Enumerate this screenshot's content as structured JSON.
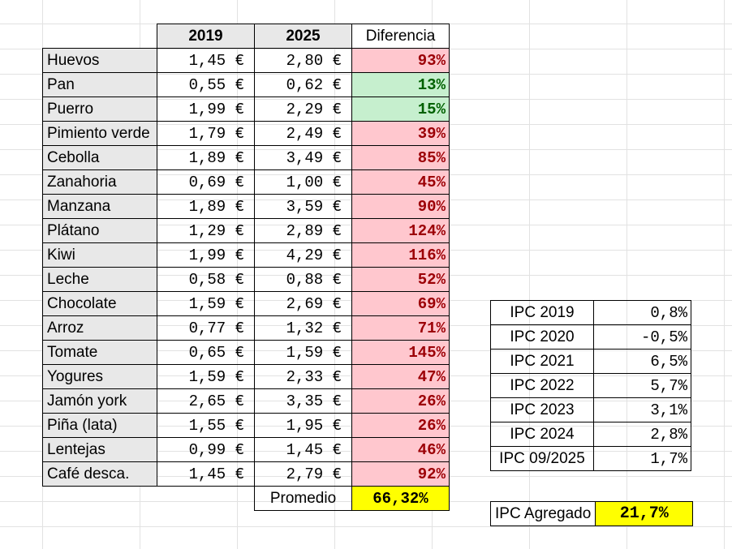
{
  "headers": {
    "y2019": "2019",
    "y2025": "2025",
    "diff": "Diferencia"
  },
  "rows": [
    {
      "name": "Huevos",
      "p2019": "1,45 €",
      "p2025": "2,80 €",
      "diff": "93%",
      "status": "bad"
    },
    {
      "name": "Pan",
      "p2019": "0,55 €",
      "p2025": "0,62 €",
      "diff": "13%",
      "status": "good"
    },
    {
      "name": "Puerro",
      "p2019": "1,99 €",
      "p2025": "2,29 €",
      "diff": "15%",
      "status": "good"
    },
    {
      "name": "Pimiento verde",
      "p2019": "1,79 €",
      "p2025": "2,49 €",
      "diff": "39%",
      "status": "bad"
    },
    {
      "name": "Cebolla",
      "p2019": "1,89 €",
      "p2025": "3,49 €",
      "diff": "85%",
      "status": "bad"
    },
    {
      "name": "Zanahoria",
      "p2019": "0,69 €",
      "p2025": "1,00 €",
      "diff": "45%",
      "status": "bad"
    },
    {
      "name": "Manzana",
      "p2019": "1,89 €",
      "p2025": "3,59 €",
      "diff": "90%",
      "status": "bad"
    },
    {
      "name": "Plátano",
      "p2019": "1,29 €",
      "p2025": "2,89 €",
      "diff": "124%",
      "status": "bad"
    },
    {
      "name": "Kiwi",
      "p2019": "1,99 €",
      "p2025": "4,29 €",
      "diff": "116%",
      "status": "bad"
    },
    {
      "name": "Leche",
      "p2019": "0,58 €",
      "p2025": "0,88 €",
      "diff": "52%",
      "status": "bad"
    },
    {
      "name": "Chocolate",
      "p2019": "1,59 €",
      "p2025": "2,69 €",
      "diff": "69%",
      "status": "bad"
    },
    {
      "name": "Arroz",
      "p2019": "0,77 €",
      "p2025": "1,32 €",
      "diff": "71%",
      "status": "bad"
    },
    {
      "name": "Tomate",
      "p2019": "0,65 €",
      "p2025": "1,59 €",
      "diff": "145%",
      "status": "bad"
    },
    {
      "name": "Yogures",
      "p2019": "1,59 €",
      "p2025": "2,33 €",
      "diff": "47%",
      "status": "bad"
    },
    {
      "name": "Jamón york",
      "p2019": "2,65 €",
      "p2025": "3,35 €",
      "diff": "26%",
      "status": "bad"
    },
    {
      "name": "Piña (lata)",
      "p2019": "1,55 €",
      "p2025": "1,95 €",
      "diff": "26%",
      "status": "bad"
    },
    {
      "name": "Lentejas",
      "p2019": "0,99 €",
      "p2025": "1,45 €",
      "diff": "46%",
      "status": "bad"
    },
    {
      "name": "Café desca.",
      "p2019": "1,45 €",
      "p2025": "2,79 €",
      "diff": "92%",
      "status": "bad"
    }
  ],
  "average": {
    "label": "Promedio",
    "value": "66,32%"
  },
  "ipc": [
    {
      "label": "IPC 2019",
      "value": "0,8%"
    },
    {
      "label": "IPC 2020",
      "value": "-0,5%"
    },
    {
      "label": "IPC 2021",
      "value": "6,5%"
    },
    {
      "label": "IPC 2022",
      "value": "5,7%"
    },
    {
      "label": "IPC 2023",
      "value": "3,1%"
    },
    {
      "label": "IPC 2024",
      "value": "2,8%"
    },
    {
      "label": "IPC 09/2025",
      "value": "1,7%"
    }
  ],
  "ipc_aggregate": {
    "label": "IPC Agregado",
    "value": "21,7%"
  },
  "colors": {
    "bad_fill": "#ffc7ce",
    "bad_text": "#9c0006",
    "good_fill": "#c6efce",
    "good_text": "#006100",
    "highlight": "#ffff00",
    "header_fill": "#e8e8e8"
  }
}
